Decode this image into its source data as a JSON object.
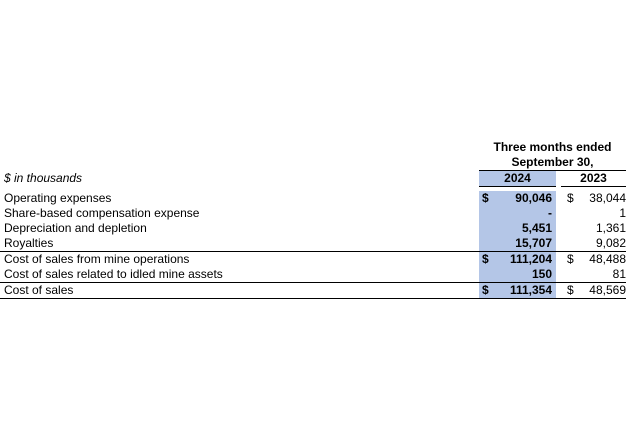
{
  "header": {
    "period_line1": "Three months ended",
    "period_line2": "September 30,",
    "units": "$ in thousands",
    "year_current": "2024",
    "year_prior": "2023"
  },
  "rows": [
    {
      "label": "Operating expenses",
      "cur_dollar": "$",
      "cur": "90,046",
      "prior_dollar": "$",
      "prior": "38,044"
    },
    {
      "label": "Share-based compensation expense",
      "cur_dollar": "",
      "cur": "-",
      "prior_dollar": "",
      "prior": "1"
    },
    {
      "label": "Depreciation and depletion",
      "cur_dollar": "",
      "cur": "5,451",
      "prior_dollar": "",
      "prior": "1,361"
    },
    {
      "label": "Royalties",
      "cur_dollar": "",
      "cur": "15,707",
      "prior_dollar": "",
      "prior": "9,082"
    },
    {
      "label": "Cost of sales from mine operations",
      "cur_dollar": "$",
      "cur": "111,204",
      "prior_dollar": "$",
      "prior": "48,488"
    },
    {
      "label": "Cost of sales related to idled mine assets",
      "cur_dollar": "",
      "cur": "150",
      "prior_dollar": "",
      "prior": "81"
    },
    {
      "label": "Cost of sales",
      "cur_dollar": "$",
      "cur": "111,354",
      "prior_dollar": "$",
      "prior": "48,569"
    }
  ],
  "colors": {
    "highlight": "#b4c6e7",
    "text": "#000000"
  }
}
